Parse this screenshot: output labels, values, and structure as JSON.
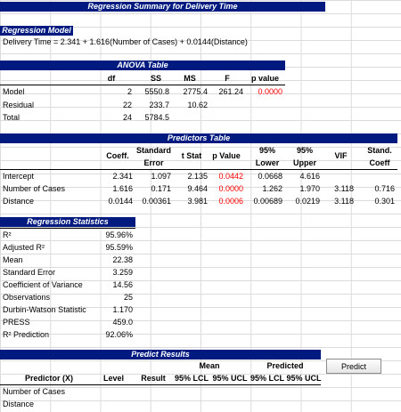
{
  "title": "Regression Summary for Delivery Time",
  "model": {
    "header": "Regression Model",
    "equation": "Delivery Time = 2.341 + 1.616(Number of Cases) + 0.0144(Distance)"
  },
  "anova": {
    "header": "ANOVA Table",
    "columns": [
      "df",
      "SS",
      "MS",
      "F",
      "p value"
    ],
    "rows": [
      {
        "label": "Model",
        "df": "2",
        "ss": "5550.8",
        "ms": "2775.4",
        "f": "261.24",
        "p": "0.0000"
      },
      {
        "label": "Residual",
        "df": "22",
        "ss": "233.7",
        "ms": "10.62",
        "f": "",
        "p": ""
      },
      {
        "label": "Total",
        "df": "24",
        "ss": "5784.5",
        "ms": "",
        "f": "",
        "p": ""
      }
    ]
  },
  "predictors": {
    "header": "Predictors Table",
    "columns": {
      "coeff": "Coeff.",
      "se_1": "Standard",
      "se_2": "Error",
      "t": "t Stat",
      "p": "p Value",
      "lower_1": "95%",
      "lower_2": "Lower",
      "upper_1": "95%",
      "upper_2": "Upper",
      "vif": "VIF",
      "stand_1": "Stand.",
      "stand_2": "Coeff"
    },
    "rows": [
      {
        "label": "Intercept",
        "coeff": "2.341",
        "se": "1.097",
        "t": "2.135",
        "p": "0.0442",
        "lower": "0.0668",
        "upper": "4.616",
        "vif": "",
        "stand": ""
      },
      {
        "label": "Number of Cases",
        "coeff": "1.616",
        "se": "0.171",
        "t": "9.464",
        "p": "0.0000",
        "lower": "1.262",
        "upper": "1.970",
        "vif": "3.118",
        "stand": "0.716"
      },
      {
        "label": "Distance",
        "coeff": "0.0144",
        "se": "0.00361",
        "t": "3.981",
        "p": "0.0006",
        "lower": "0.00689",
        "upper": "0.0219",
        "vif": "3.118",
        "stand": "0.301"
      }
    ]
  },
  "stats": {
    "header": "Regression Statistics",
    "rows": [
      {
        "label": "R²",
        "value": "95.96%"
      },
      {
        "label": "Adjusted R²",
        "value": "95.59%"
      },
      {
        "label": "Mean",
        "value": "22.38"
      },
      {
        "label": "Standard Error",
        "value": "3.259"
      },
      {
        "label": "Coefficient of Variance",
        "value": "14.56"
      },
      {
        "label": "Observations",
        "value": "25"
      },
      {
        "label": "Durbin-Watson Statistic",
        "value": "1.170"
      },
      {
        "label": "PRESS",
        "value": "459.0"
      },
      {
        "label": "R² Prediction",
        "value": "92.06%"
      }
    ]
  },
  "predict": {
    "header": "Predict Results",
    "button_label": "Predict",
    "group_mean": "Mean",
    "group_predicted": "Predicted",
    "columns": {
      "predictor": "Predictor (X)",
      "level": "Level",
      "result": "Result",
      "mean_lcl": "95% LCL",
      "mean_ucl": "95% UCL",
      "pred_lcl": "95% LCL",
      "pred_ucl": "95% UCL"
    },
    "rows": [
      {
        "label": "Number of Cases"
      },
      {
        "label": "Distance"
      }
    ]
  },
  "colors": {
    "header_bg": "#001a80",
    "header_fg": "#ffffff",
    "significant": "#ff0000"
  }
}
